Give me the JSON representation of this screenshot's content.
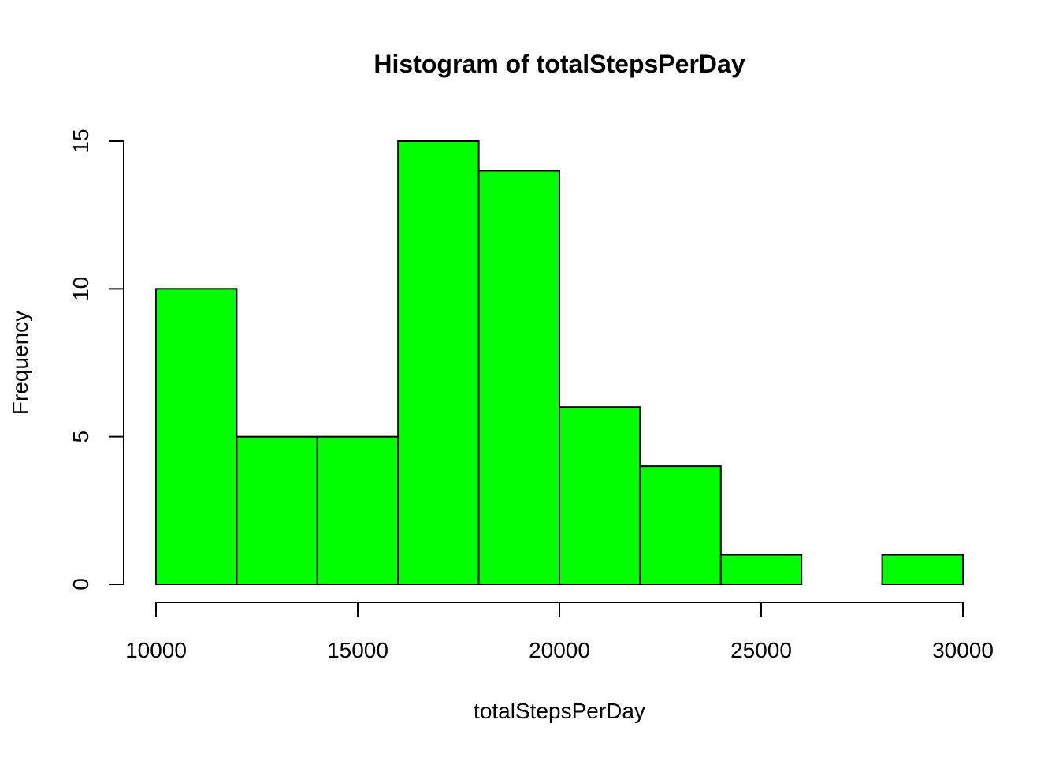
{
  "chart_data": {
    "type": "bar",
    "title": "Histogram of totalStepsPerDay",
    "xlabel": "totalStepsPerDay",
    "ylabel": "Frequency",
    "bins": [
      {
        "from": 10000,
        "to": 12000,
        "count": 10
      },
      {
        "from": 12000,
        "to": 14000,
        "count": 5
      },
      {
        "from": 14000,
        "to": 16000,
        "count": 5
      },
      {
        "from": 16000,
        "to": 18000,
        "count": 15
      },
      {
        "from": 18000,
        "to": 20000,
        "count": 14
      },
      {
        "from": 20000,
        "to": 22000,
        "count": 6
      },
      {
        "from": 22000,
        "to": 24000,
        "count": 4
      },
      {
        "from": 24000,
        "to": 26000,
        "count": 1
      },
      {
        "from": 26000,
        "to": 28000,
        "count": 0
      },
      {
        "from": 28000,
        "to": 30000,
        "count": 1
      }
    ],
    "xlim": [
      10000,
      30000
    ],
    "ylim": [
      0,
      15
    ],
    "xticks": [
      10000,
      15000,
      20000,
      25000,
      30000
    ],
    "xtick_labels": [
      "10000",
      "15000",
      "20000",
      "25000",
      "30000"
    ],
    "yticks": [
      0,
      5,
      10,
      15
    ],
    "ytick_labels": [
      "0",
      "5",
      "10",
      "15"
    ],
    "bar_color": "#00ff00",
    "border_color": "#000000",
    "grid": false,
    "legend": "none"
  }
}
